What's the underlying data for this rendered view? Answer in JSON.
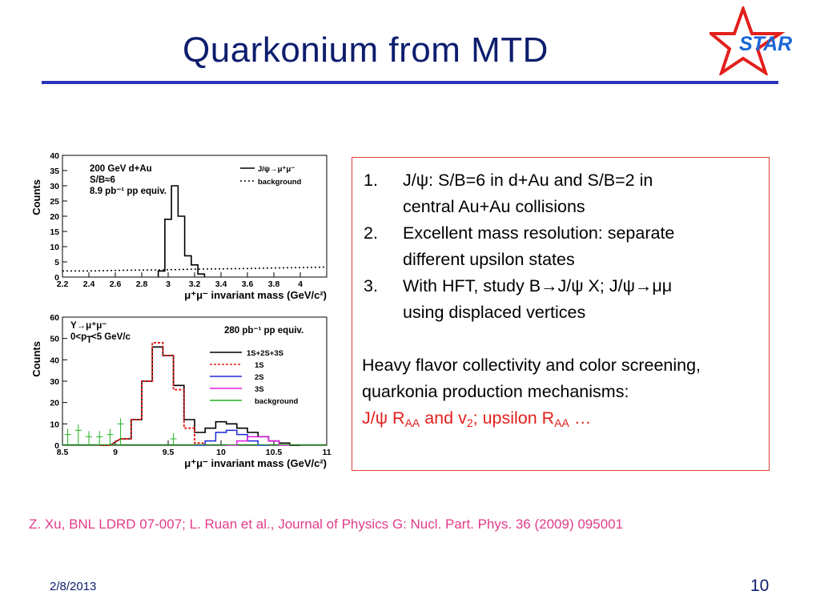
{
  "slide": {
    "title": "Quarkonium from MTD",
    "logo_text": "STAR",
    "reference": "Z. Xu, BNL LDRD 07-007; L. Ruan et al., Journal of Physics G: Nucl. Part. Phys. 36 (2009) 095001",
    "date": "2/8/2013",
    "page_number": "10",
    "colors": {
      "title": "#0d1d6e",
      "rule": "#2a33b8",
      "box_border": "#e0403a",
      "highlight": "#e2201c",
      "reference": "#e03c8a"
    }
  },
  "textbox": {
    "items": [
      {
        "num": "1.",
        "line1": "J/ψ: S/B=6 in d+Au  and S/B=2 in",
        "line2": "central Au+Au collisions"
      },
      {
        "num": "2.",
        "line1": "Excellent mass resolution: separate",
        "line2": "different upsilon states"
      },
      {
        "num": "3.",
        "line1": "With HFT, study B→J/ψ X; J/ψ→μμ",
        "line2": "using displaced vertices"
      }
    ],
    "paragraph": "Heavy flavor collectivity and color screening, quarkonia production mechanisms:",
    "highlight": {
      "p1": "J/ψ R",
      "s1": "AA",
      "p2": " and v",
      "s2": "2",
      "p3": "; upsilon R",
      "s3": "AA",
      "p4": "  …"
    }
  },
  "chart_data": [
    {
      "type": "line",
      "ylabel": "Counts",
      "xlabel": "μ⁺μ⁻ invariant mass (GeV/c²)",
      "xlim": [
        2.2,
        4.2
      ],
      "ylim": [
        0,
        40
      ],
      "x_ticks": [
        2.2,
        2.4,
        2.6,
        2.8,
        3,
        3.2,
        3.4,
        3.6,
        3.8,
        4
      ],
      "y_ticks": [
        0,
        5,
        10,
        15,
        20,
        25,
        30,
        35,
        40
      ],
      "annotations": [
        "200 GeV d+Au",
        "S/B≈6",
        "8.9 pb⁻¹ pp equiv."
      ],
      "legend": [
        "J/ψ→μ⁺μ⁻",
        "background"
      ],
      "legend_position": "top-right",
      "series": [
        {
          "name": "J/ψ→μ⁺μ⁻",
          "style": "solid",
          "color": "#000000",
          "x": [
            2.95,
            3.0,
            3.05,
            3.1,
            3.15,
            3.2,
            3.25
          ],
          "y": [
            2,
            19,
            30,
            20,
            7,
            4,
            1
          ]
        },
        {
          "name": "background",
          "style": "dotted",
          "color": "#000000",
          "x": [
            2.2,
            2.4,
            2.6,
            2.8,
            3.0,
            3.2,
            3.4,
            3.6,
            3.8,
            4.0,
            4.2
          ],
          "y": [
            2,
            2,
            2.2,
            2.3,
            2.4,
            2.6,
            2.7,
            2.8,
            3,
            3.1,
            3.3
          ]
        }
      ]
    },
    {
      "type": "line",
      "ylabel": "Counts",
      "xlabel": "μ⁺μ⁻ invariant mass (GeV/c²)",
      "xlim": [
        8.5,
        11
      ],
      "ylim": [
        0,
        60
      ],
      "x_ticks": [
        8.5,
        9,
        9.5,
        10,
        10.5,
        11
      ],
      "y_ticks": [
        0,
        10,
        20,
        30,
        40,
        50,
        60
      ],
      "annotations": [
        "Υ→μ⁺μ⁻",
        "0<p",
        "T",
        "<5 GeV/c",
        "280 pb⁻¹ pp equiv."
      ],
      "legend": [
        "1S+2S+3S",
        "1S",
        "2S",
        "3S",
        "background"
      ],
      "legend_position": "top-right",
      "series": [
        {
          "name": "1S+2S+3S",
          "color": "#000000",
          "x": [
            8.9,
            9.1,
            9.2,
            9.3,
            9.4,
            9.5,
            9.6,
            9.7,
            9.8,
            9.9,
            10.0,
            10.1,
            10.2,
            10.3,
            10.4,
            10.5,
            10.6,
            10.7
          ],
          "y": [
            0,
            3,
            12,
            30,
            46,
            42,
            28,
            12,
            6,
            8,
            11,
            10,
            8,
            6,
            4,
            2,
            1,
            0
          ]
        },
        {
          "name": "1S",
          "color": "#e2201c",
          "x": [
            8.9,
            9.1,
            9.2,
            9.3,
            9.4,
            9.5,
            9.6,
            9.7,
            9.8
          ],
          "y": [
            0,
            3,
            12,
            30,
            48,
            42,
            26,
            8,
            1
          ]
        },
        {
          "name": "2S",
          "color": "#1a2ad6",
          "x": [
            9.8,
            9.9,
            10.0,
            10.1,
            10.2,
            10.3,
            10.4
          ],
          "y": [
            0,
            2,
            6,
            7,
            5,
            2,
            0
          ]
        },
        {
          "name": "3S",
          "color": "#e01ce0",
          "x": [
            10.1,
            10.2,
            10.3,
            10.4,
            10.5,
            10.6
          ],
          "y": [
            0,
            2,
            4,
            4,
            2,
            0
          ]
        },
        {
          "name": "background",
          "color": "#20b020",
          "x": [
            8.55,
            8.65,
            8.75,
            8.85,
            8.95,
            9.05,
            9.55
          ],
          "y": [
            5,
            7,
            4,
            4,
            5,
            10,
            3
          ]
        }
      ]
    }
  ]
}
